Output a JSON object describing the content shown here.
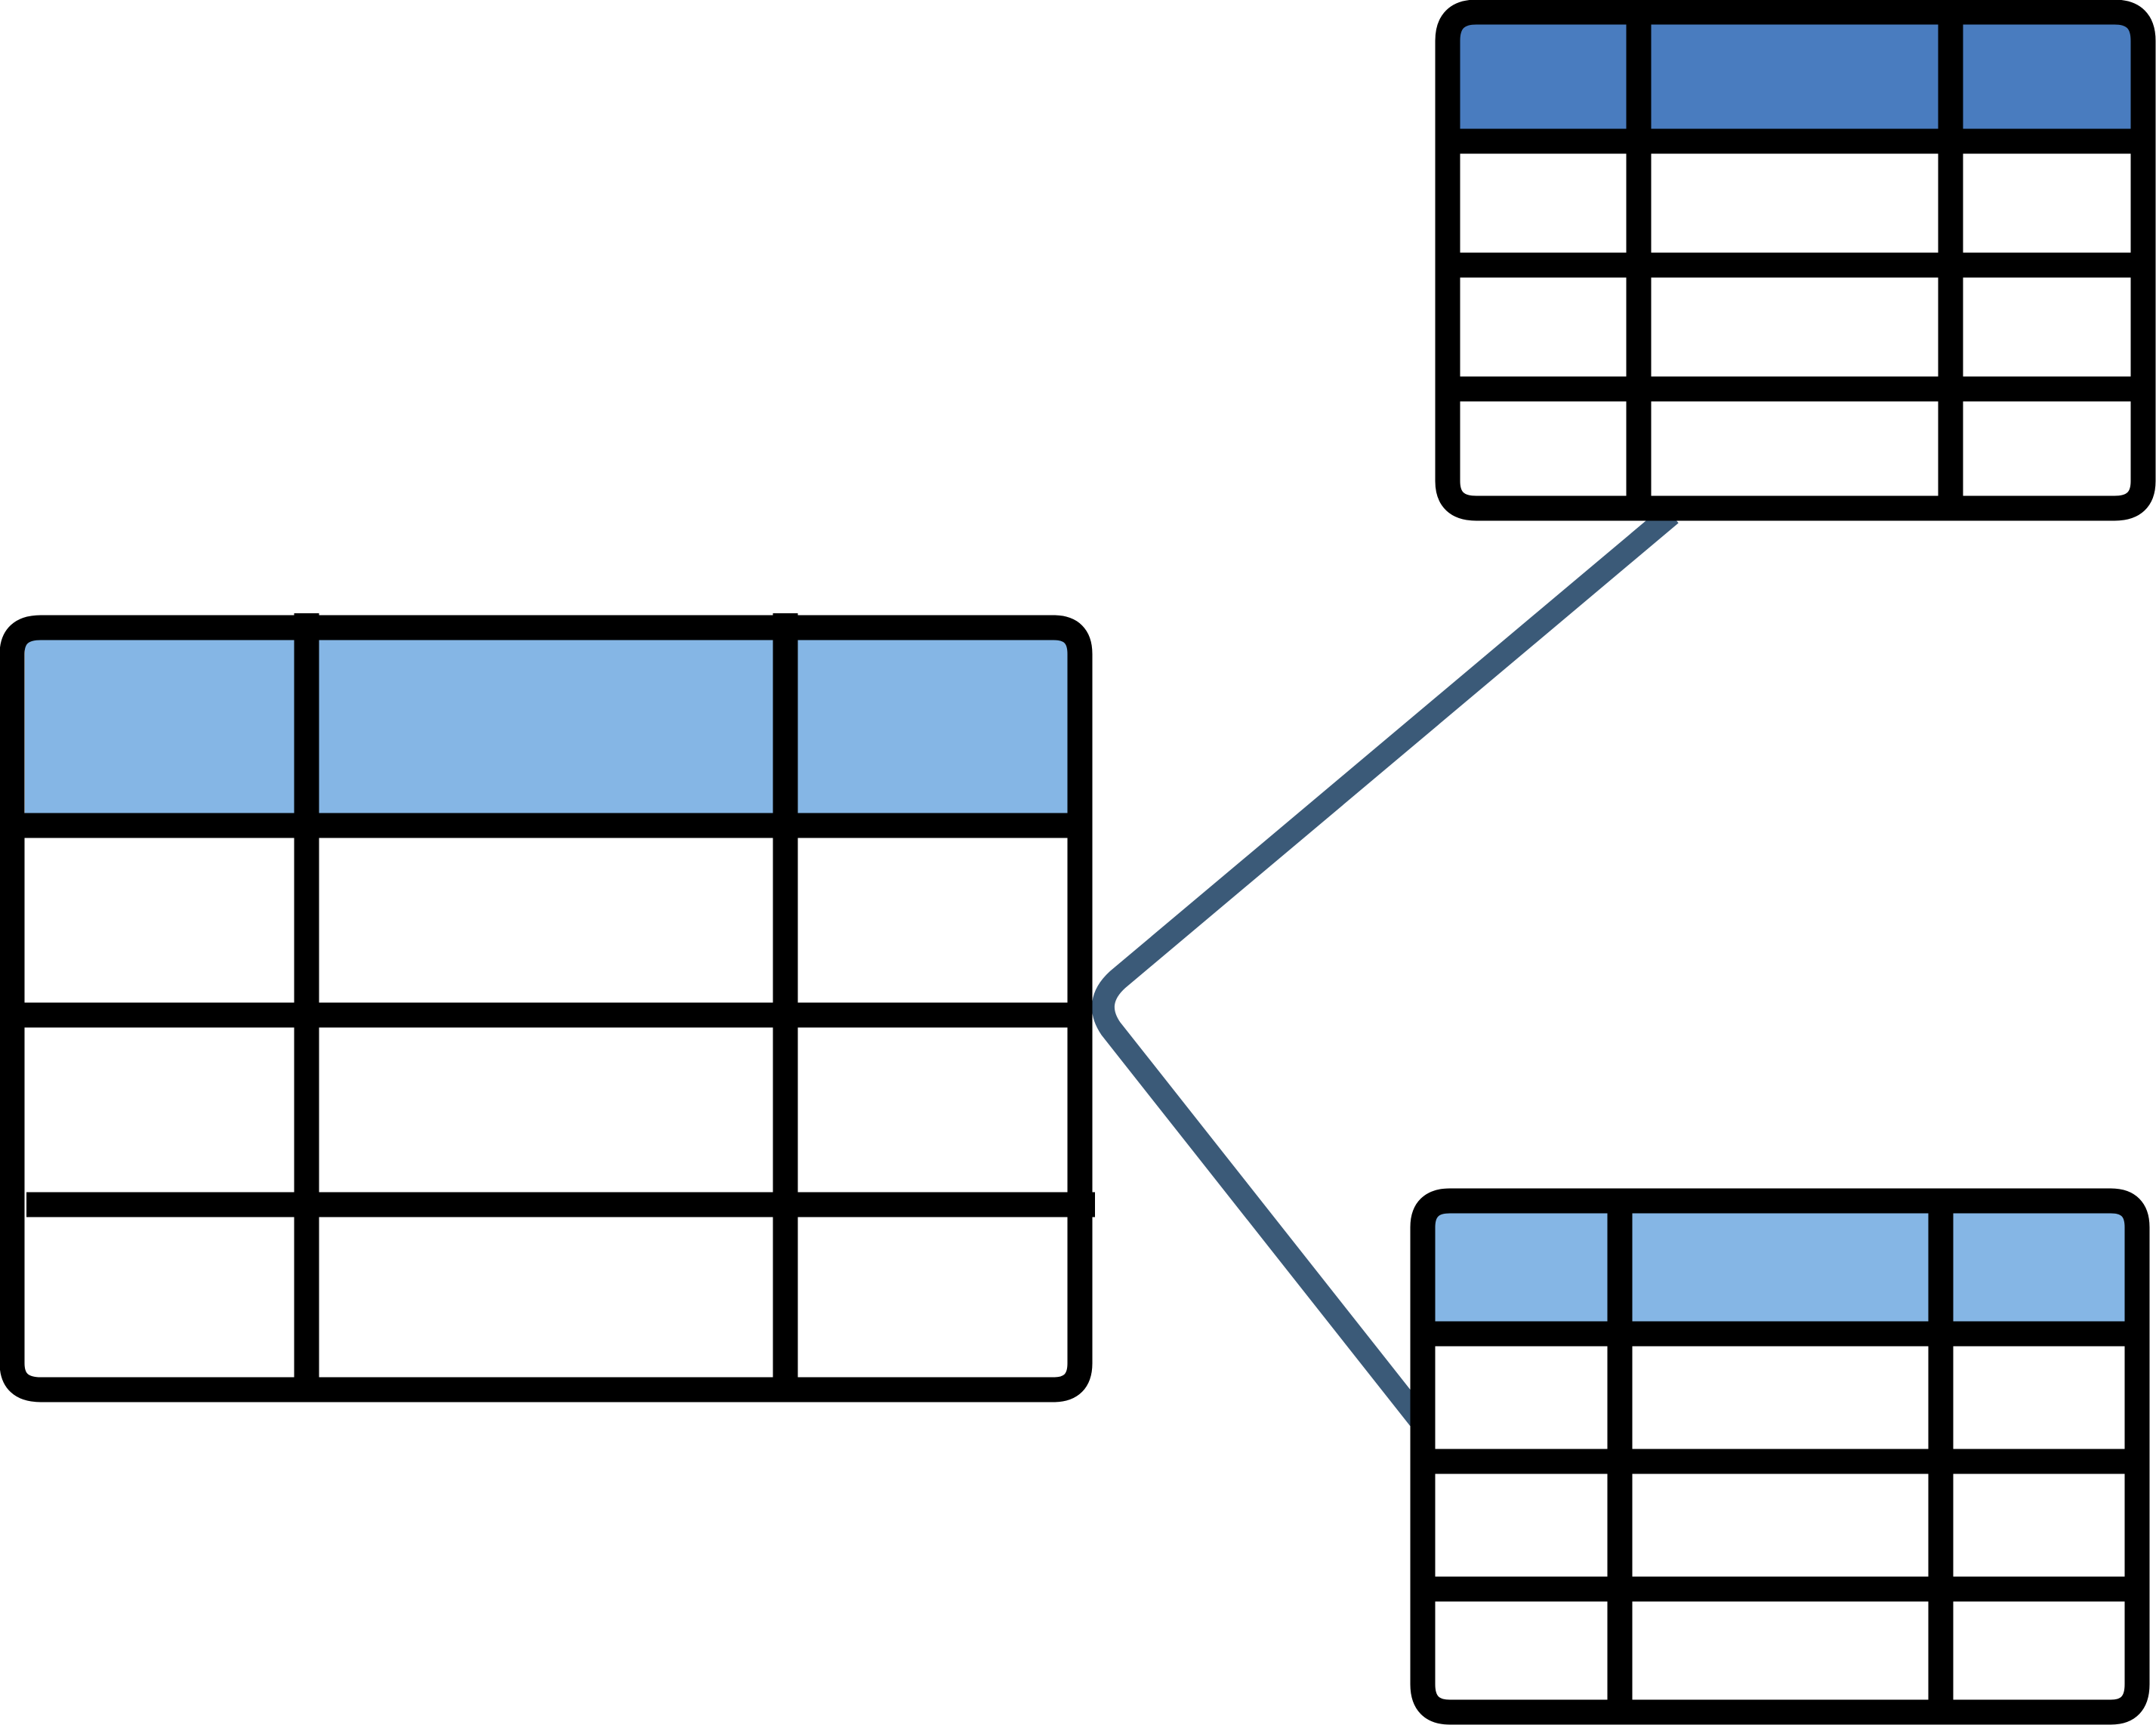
{
  "colors": {
    "background": "#ffffff",
    "outline": "#000000",
    "connector": "#3b5a78",
    "header_light": "#85b6e5",
    "header_dark": "#497cbf",
    "cell_fill": "#ffffff"
  },
  "diagram": {
    "description_text": "",
    "tables": [
      {
        "id": "left-table",
        "columns": 3,
        "header_rows": 1,
        "body_rows": 3,
        "header_color_key": "header_light"
      },
      {
        "id": "top-right-table",
        "columns": 3,
        "header_rows": 1,
        "body_rows": 3,
        "header_color_key": "header_dark"
      },
      {
        "id": "bottom-right-table",
        "columns": 3,
        "header_rows": 1,
        "body_rows": 3,
        "header_color_key": "header_light"
      }
    ],
    "connectors": [
      {
        "id": "connector-left-to-top-right",
        "from": "left-table",
        "to": "top-right-table"
      },
      {
        "id": "connector-left-to-bottom-right",
        "from": "left-table",
        "to": "bottom-right-table"
      }
    ]
  }
}
